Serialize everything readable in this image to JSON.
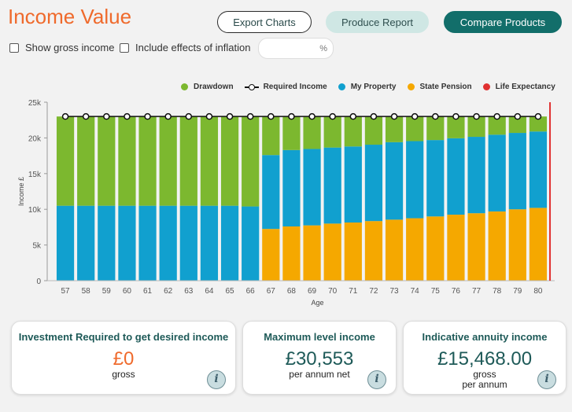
{
  "header": {
    "title": "Income Value"
  },
  "toolbar": {
    "export_label": "Export Charts",
    "report_label": "Produce Report",
    "compare_label": "Compare Products"
  },
  "options": {
    "show_gross_label": "Show gross income",
    "show_gross_checked": false,
    "inflation_label": "Include effects of inflation",
    "inflation_checked": false,
    "inflation_value": "",
    "inflation_unit": "%"
  },
  "legend": {
    "drawdown": "Drawdown",
    "required_income": "Required Income",
    "my_property": "My Property",
    "state_pension": "State Pension",
    "life_expectancy": "Life Expectancy"
  },
  "colors": {
    "drawdown": "#7cb82f",
    "my_property": "#11a0cf",
    "state_pension": "#f5a800",
    "life_expectancy": "#e03131",
    "required_income": "#111111"
  },
  "chart_data": {
    "type": "bar",
    "stacked": true,
    "xlabel": "Age",
    "ylabel": "Income £",
    "ylim": [
      0,
      25000
    ],
    "yticks": [
      "0",
      "5k",
      "10k",
      "15k",
      "20k",
      "25k"
    ],
    "categories": [
      57,
      58,
      59,
      60,
      61,
      62,
      63,
      64,
      65,
      66,
      67,
      68,
      69,
      70,
      71,
      72,
      73,
      74,
      75,
      76,
      77,
      78,
      79,
      80
    ],
    "series": [
      {
        "name": "State Pension",
        "values": [
          0,
          0,
          0,
          0,
          0,
          0,
          0,
          0,
          0,
          0,
          7250,
          7600,
          7750,
          8000,
          8150,
          8350,
          8550,
          8750,
          9000,
          9250,
          9450,
          9700,
          10000,
          10200
        ]
      },
      {
        "name": "My Property",
        "values": [
          10500,
          10500,
          10500,
          10500,
          10500,
          10500,
          10500,
          10500,
          10500,
          10400,
          10350,
          10700,
          10700,
          10650,
          10650,
          10700,
          10850,
          10800,
          10700,
          10700,
          10700,
          10750,
          10700,
          10700
        ]
      },
      {
        "name": "Drawdown",
        "values": [
          12500,
          12500,
          12500,
          12500,
          12500,
          12500,
          12500,
          12500,
          12500,
          12600,
          5400,
          4700,
          4550,
          4350,
          4200,
          3950,
          3600,
          3450,
          3300,
          3050,
          2850,
          2550,
          2300,
          2100
        ]
      }
    ],
    "required_income": [
      23000,
      23000,
      23000,
      23000,
      23000,
      23000,
      23000,
      23000,
      23000,
      23000,
      23000,
      23000,
      23000,
      23000,
      23000,
      23000,
      23000,
      23000,
      23000,
      23000,
      23000,
      23000,
      23000,
      23000
    ],
    "life_expectancy_age": 80,
    "legend_position": "top-right",
    "grid": false
  },
  "cards": {
    "investment": {
      "title": "Investment Required to get desired income",
      "value": "£0",
      "sub": "gross"
    },
    "max_level": {
      "title": "Maximum level income",
      "value": "£30,553",
      "sub": "per annum net"
    },
    "annuity": {
      "title": "Indicative annuity income",
      "value": "£15,468.00",
      "sub1": "gross",
      "sub2": "per annum"
    },
    "info_glyph": "i"
  }
}
